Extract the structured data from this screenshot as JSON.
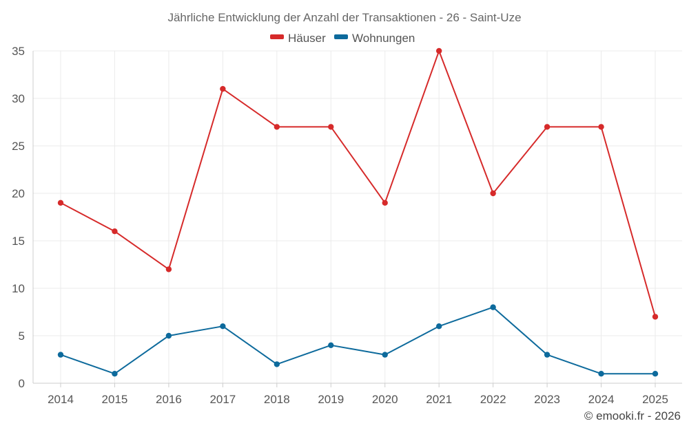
{
  "chart_data": {
    "type": "line",
    "title": "Jährliche Entwicklung der Anzahl der Transaktionen - 26 - Saint-Uze",
    "categories": [
      "2014",
      "2015",
      "2016",
      "2017",
      "2018",
      "2019",
      "2020",
      "2021",
      "2022",
      "2023",
      "2024",
      "2025"
    ],
    "series": [
      {
        "name": "Häuser",
        "color": "#d62a2a",
        "values": [
          19,
          16,
          12,
          31,
          27,
          27,
          19,
          35,
          20,
          27,
          27,
          7
        ]
      },
      {
        "name": "Wohnungen",
        "color": "#0d6a9c",
        "values": [
          3,
          1,
          5,
          6,
          2,
          4,
          3,
          6,
          8,
          3,
          1,
          1
        ]
      }
    ],
    "yticks": [
      "0",
      "5",
      "10",
      "15",
      "20",
      "25",
      "30",
      "35"
    ],
    "ylim": [
      0,
      35
    ],
    "xlabel": "",
    "ylabel": "",
    "grid": true,
    "legend_position": "top-center"
  },
  "credit": "© emooki.fr - 2026"
}
